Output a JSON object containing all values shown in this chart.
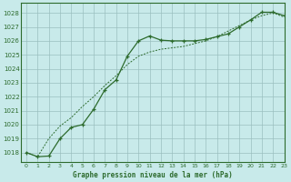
{
  "title": "Graphe pression niveau de la mer (hPa)",
  "background_color": "#c8eaea",
  "grid_color": "#9bbfbf",
  "line_color": "#2d6b2d",
  "xlim": [
    -0.5,
    23
  ],
  "ylim": [
    1017.3,
    1028.7
  ],
  "yticks": [
    1018,
    1019,
    1020,
    1021,
    1022,
    1023,
    1024,
    1025,
    1026,
    1027,
    1028
  ],
  "xticks": [
    0,
    1,
    2,
    3,
    4,
    5,
    6,
    7,
    8,
    9,
    10,
    11,
    12,
    13,
    14,
    15,
    16,
    17,
    18,
    19,
    20,
    21,
    22,
    23
  ],
  "series1_x": [
    0,
    1,
    2,
    3,
    4,
    5,
    6,
    7,
    8,
    9,
    10,
    11,
    12,
    13,
    14,
    15,
    16,
    17,
    18,
    19,
    20,
    21,
    22,
    23
  ],
  "series1_y": [
    1018.0,
    1017.7,
    1017.75,
    1019.0,
    1019.8,
    1020.0,
    1021.1,
    1022.5,
    1023.2,
    1024.9,
    1026.0,
    1026.35,
    1026.05,
    1026.0,
    1026.0,
    1026.0,
    1026.1,
    1026.3,
    1026.5,
    1027.0,
    1027.5,
    1028.05,
    1028.05,
    1027.8
  ],
  "series2_x": [
    0,
    1,
    2,
    3,
    4,
    5,
    6,
    7,
    8,
    9,
    10,
    11,
    12,
    13,
    14,
    15,
    16,
    17,
    18,
    19,
    20,
    21,
    22,
    23
  ],
  "series2_y": [
    1018.0,
    1017.7,
    1019.0,
    1019.9,
    1020.5,
    1021.3,
    1022.0,
    1022.8,
    1023.5,
    1024.3,
    1024.9,
    1025.2,
    1025.4,
    1025.5,
    1025.6,
    1025.8,
    1026.0,
    1026.3,
    1026.7,
    1027.1,
    1027.5,
    1027.8,
    1028.0,
    1027.7
  ]
}
